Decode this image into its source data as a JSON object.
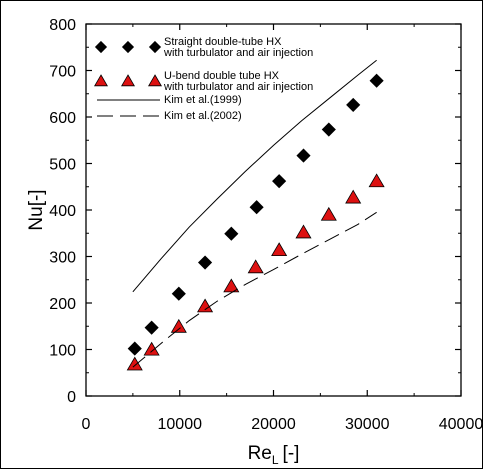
{
  "chart_data": {
    "type": "scatter",
    "xlabel": "Re",
    "xlabel_subscript": "L",
    "xlabel_unit": "[-]",
    "ylabel": "Nu[-]",
    "xlim": [
      0,
      40000
    ],
    "ylim": [
      0,
      800
    ],
    "xticks": [
      0,
      10000,
      20000,
      30000,
      40000
    ],
    "yticks": [
      0,
      100,
      200,
      300,
      400,
      500,
      600,
      700,
      800
    ],
    "grid": false,
    "legend_position": "top-left",
    "series": [
      {
        "name": "Straight double-tube HX\nwith turbulator and air injection",
        "marker": "diamond",
        "color": "#000000",
        "x": [
          5200,
          7000,
          9900,
          12700,
          15500,
          18200,
          20600,
          23200,
          25900,
          28500,
          31000
        ],
        "y": [
          102,
          147,
          220,
          287,
          349,
          406,
          462,
          517,
          573,
          626,
          678
        ]
      },
      {
        "name": "U-bend double tube HX\nwith turbulator and air injection",
        "marker": "triangle",
        "color": "#dd1111",
        "x": [
          5200,
          7000,
          9900,
          12700,
          15500,
          18100,
          20600,
          23200,
          25900,
          28500,
          31000
        ],
        "y": [
          68,
          100,
          149,
          193,
          236,
          277,
          314,
          352,
          390,
          427,
          462
        ]
      },
      {
        "name": "Kim et al.(1999)",
        "style": "solid",
        "color": "#000000",
        "x": [
          5000,
          8000,
          11000,
          14000,
          17000,
          20000,
          23000,
          26000,
          29000,
          31000
        ],
        "y": [
          224,
          295,
          363,
          424,
          483,
          539,
          592,
          641,
          690,
          722
        ]
      },
      {
        "name": "Kim et al.(2002)",
        "style": "dashed",
        "color": "#000000",
        "x": [
          5000,
          8000,
          11000,
          14000,
          17000,
          20000,
          23000,
          26000,
          29000,
          31000
        ],
        "y": [
          62,
          113,
          162,
          204,
          240,
          272,
          305,
          337,
          369,
          395
        ]
      }
    ]
  }
}
